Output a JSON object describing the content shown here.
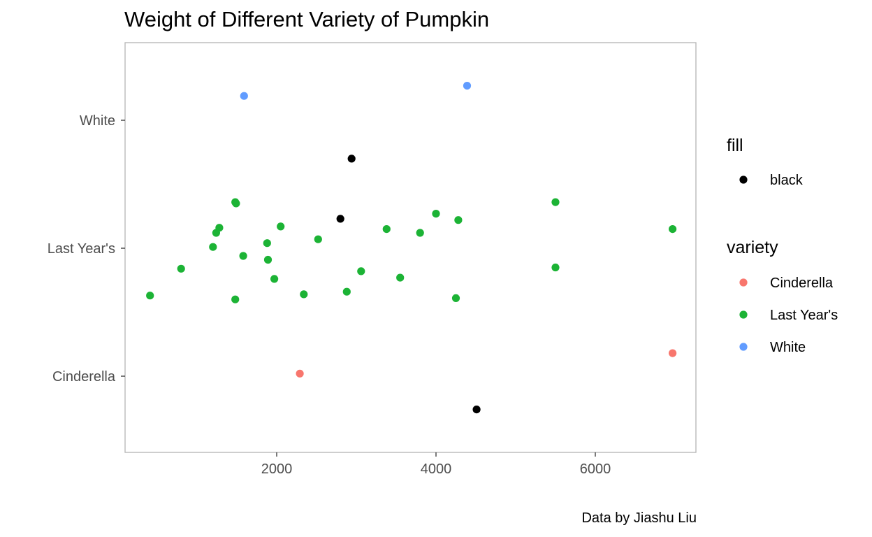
{
  "chart_data": {
    "type": "scatter",
    "title": "Weight of Different Variety of Pumpkin",
    "caption": "Data by Jiashu Liu",
    "xlabel": "",
    "ylabel": "",
    "xlim": [
      100,
      7300
    ],
    "x_ticks": [
      2000,
      4000,
      6000
    ],
    "y_categories": [
      "Cinderella",
      "Last Year's",
      "White"
    ],
    "grid": false,
    "colors": {
      "Cinderella": "#F8766D",
      "Last Year's": "#1CB335",
      "White": "#619CFF",
      "black": "#000000"
    },
    "legends": [
      {
        "title": "fill",
        "items": [
          "black"
        ]
      },
      {
        "title": "variety",
        "items": [
          "Cinderella",
          "Last Year's",
          "White"
        ]
      }
    ],
    "series": [
      {
        "name": "Cinderella",
        "points": [
          {
            "x": 2290,
            "y": "Cinderella",
            "jitter": 0.02
          },
          {
            "x": 6970,
            "y": "Cinderella",
            "jitter": 0.18
          }
        ]
      },
      {
        "name": "White",
        "points": [
          {
            "x": 1590,
            "y": "White",
            "jitter": 0.19
          },
          {
            "x": 4390,
            "y": "White",
            "jitter": 0.27
          }
        ]
      },
      {
        "name": "Last Year's",
        "points": [
          {
            "x": 410,
            "y": "Last Year's",
            "jitter": -0.37
          },
          {
            "x": 800,
            "y": "Last Year's",
            "jitter": -0.16
          },
          {
            "x": 1200,
            "y": "Last Year's",
            "jitter": 0.01
          },
          {
            "x": 1240,
            "y": "Last Year's",
            "jitter": 0.12
          },
          {
            "x": 1280,
            "y": "Last Year's",
            "jitter": 0.16
          },
          {
            "x": 1480,
            "y": "Last Year's",
            "jitter": 0.36
          },
          {
            "x": 1490,
            "y": "Last Year's",
            "jitter": 0.35
          },
          {
            "x": 1480,
            "y": "Last Year's",
            "jitter": -0.4
          },
          {
            "x": 1580,
            "y": "Last Year's",
            "jitter": -0.06
          },
          {
            "x": 1880,
            "y": "Last Year's",
            "jitter": 0.04
          },
          {
            "x": 1890,
            "y": "Last Year's",
            "jitter": -0.09
          },
          {
            "x": 1970,
            "y": "Last Year's",
            "jitter": -0.24
          },
          {
            "x": 2050,
            "y": "Last Year's",
            "jitter": 0.17
          },
          {
            "x": 2340,
            "y": "Last Year's",
            "jitter": -0.36
          },
          {
            "x": 2520,
            "y": "Last Year's",
            "jitter": 0.07
          },
          {
            "x": 2880,
            "y": "Last Year's",
            "jitter": -0.34
          },
          {
            "x": 3060,
            "y": "Last Year's",
            "jitter": -0.18
          },
          {
            "x": 3380,
            "y": "Last Year's",
            "jitter": 0.15
          },
          {
            "x": 3550,
            "y": "Last Year's",
            "jitter": -0.23
          },
          {
            "x": 3800,
            "y": "Last Year's",
            "jitter": 0.12
          },
          {
            "x": 4000,
            "y": "Last Year's",
            "jitter": 0.27
          },
          {
            "x": 4250,
            "y": "Last Year's",
            "jitter": -0.39
          },
          {
            "x": 4280,
            "y": "Last Year's",
            "jitter": 0.22
          },
          {
            "x": 5500,
            "y": "Last Year's",
            "jitter": 0.36
          },
          {
            "x": 5500,
            "y": "Last Year's",
            "jitter": -0.15
          },
          {
            "x": 6970,
            "y": "Last Year's",
            "jitter": 0.15
          }
        ]
      },
      {
        "name": "black",
        "points": [
          {
            "x": 2940,
            "y": "White",
            "jitter": -0.3
          },
          {
            "x": 2800,
            "y": "Last Year's",
            "jitter": 0.23
          },
          {
            "x": 4510,
            "y": "Cinderella",
            "jitter": -0.26
          }
        ]
      }
    ]
  }
}
